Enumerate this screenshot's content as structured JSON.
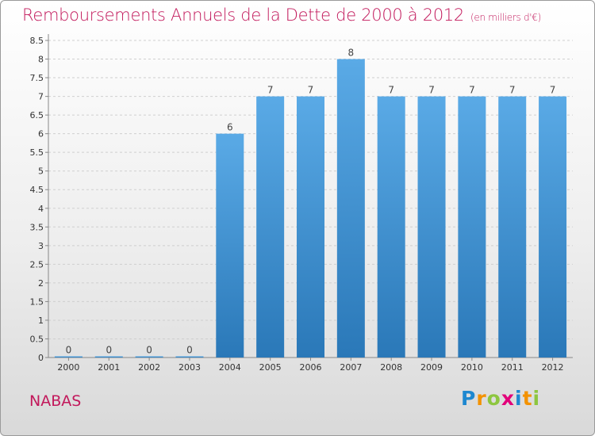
{
  "title": "Remboursements Annuels de la Dette de 2000 à 2012",
  "unit": "(en milliers d'€)",
  "place": "NABAS",
  "logo": {
    "text": "Proxiti",
    "letters": [
      {
        "ch": "P",
        "color": "#1e88d0"
      },
      {
        "ch": "r",
        "color": "#f39200"
      },
      {
        "ch": "o",
        "color": "#8dc63f"
      },
      {
        "ch": "x",
        "color": "#e2007a"
      },
      {
        "ch": "i",
        "color": "#1e88d0"
      },
      {
        "ch": "t",
        "color": "#f39200"
      },
      {
        "ch": "i",
        "color": "#8dc63f"
      }
    ]
  },
  "chart_data": {
    "type": "bar",
    "categories": [
      "2000",
      "2001",
      "2002",
      "2003",
      "2004",
      "2005",
      "2006",
      "2007",
      "2008",
      "2009",
      "2010",
      "2011",
      "2012"
    ],
    "values": [
      0,
      0,
      0,
      0,
      6,
      7,
      7,
      8,
      7,
      7,
      7,
      7,
      7
    ],
    "data_labels": [
      "0",
      "0",
      "0",
      "0",
      "6",
      "7",
      "7",
      "8",
      "7",
      "7",
      "7",
      "7",
      "7"
    ],
    "yticks": [
      "0",
      "0.5",
      "1",
      "1.5",
      "2",
      "2.5",
      "3",
      "3.5",
      "4",
      "4.5",
      "5",
      "5.5",
      "6",
      "6.5",
      "7",
      "7.5",
      "8",
      "8.5"
    ],
    "ylim": [
      0,
      8.5
    ],
    "grid": true,
    "xlabel": "",
    "ylabel": "",
    "colors": {
      "bar_light": "#5aaae6",
      "bar_dark": "#2a78b8",
      "grid": "#cfcfcf",
      "accent": "#c2185b"
    }
  }
}
